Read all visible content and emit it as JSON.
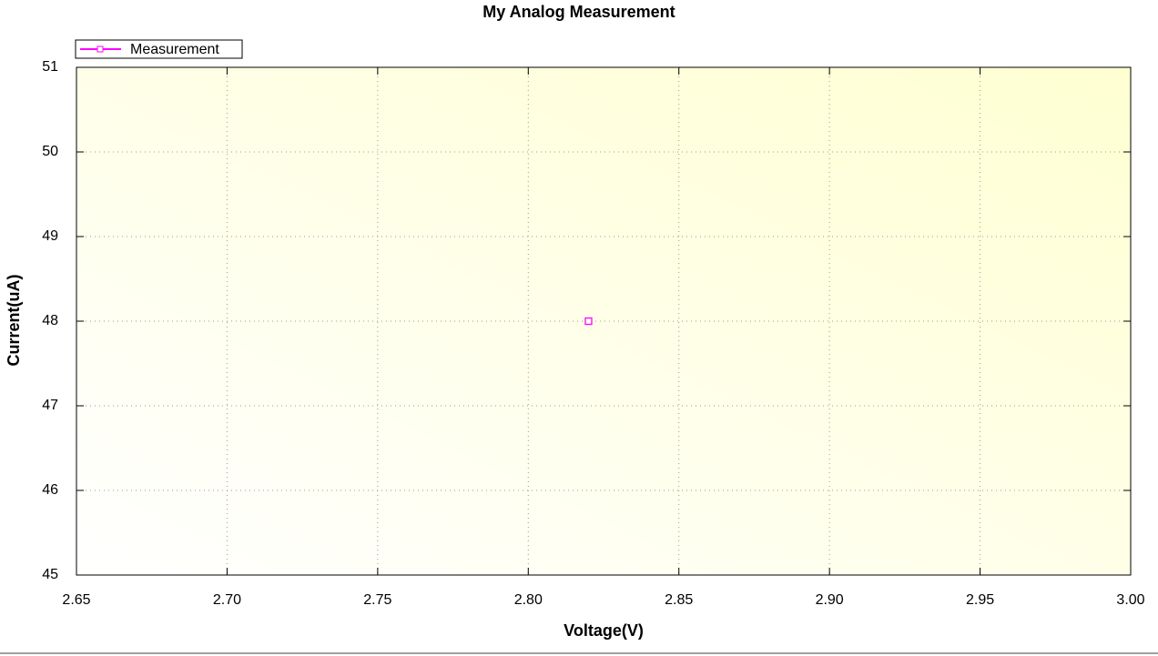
{
  "chart_data": {
    "type": "scatter",
    "title": "My Analog Measurement",
    "x_label": "Voltage(V)",
    "y_label": "Current(uA)",
    "series": [
      {
        "name": "Measurement",
        "color": "#ff00ff",
        "x": [
          2.82
        ],
        "values": [
          48
        ]
      }
    ],
    "xlim": [
      2.65,
      3.0
    ],
    "xticks": [
      2.65,
      {
        "value": 2.7,
        "label": "2.70"
      },
      2.75,
      {
        "value": 2.8,
        "label": "2.80"
      },
      2.85,
      {
        "value": 2.9,
        "label": "2.90"
      },
      2.95,
      {
        "value": 3.0,
        "label": "3.00"
      }
    ],
    "ylim": [
      45,
      51
    ],
    "yticks": [
      45,
      46,
      47,
      48,
      49,
      50,
      51
    ],
    "grid": true,
    "legend": "top-left"
  }
}
